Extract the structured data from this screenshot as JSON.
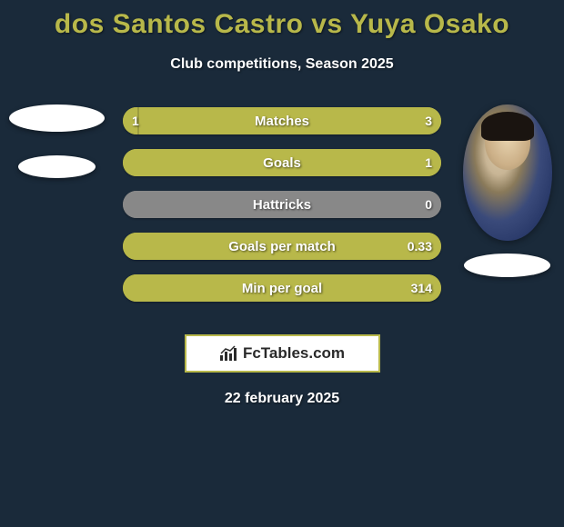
{
  "title": "dos Santos Castro vs Yuya Osako",
  "subtitle": "Club competitions, Season 2025",
  "date": "22 february 2025",
  "logo_text": "FcTables.com",
  "colors": {
    "background": "#1a2a3a",
    "accent": "#b8b84a",
    "bar_primary": "#b8b84a",
    "bar_neutral": "#888888",
    "text": "#ffffff"
  },
  "players": {
    "left": {
      "name": "dos Santos Castro",
      "avatar_style": "placeholder"
    },
    "right": {
      "name": "Yuya Osako",
      "avatar_style": "portrait"
    }
  },
  "bars": [
    {
      "label": "Matches",
      "left_val": "1",
      "right_val": "3",
      "left_pct": 5,
      "right_pct": 95,
      "left_color": "#b8b84a",
      "right_color": "#b8b84a"
    },
    {
      "label": "Goals",
      "left_val": "",
      "right_val": "1",
      "left_pct": 0,
      "right_pct": 100,
      "left_color": "#b8b84a",
      "right_color": "#b8b84a"
    },
    {
      "label": "Hattricks",
      "left_val": "",
      "right_val": "0",
      "left_pct": 0,
      "right_pct": 100,
      "left_color": "#888888",
      "right_color": "#888888"
    },
    {
      "label": "Goals per match",
      "left_val": "",
      "right_val": "0.33",
      "left_pct": 0,
      "right_pct": 100,
      "left_color": "#b8b84a",
      "right_color": "#b8b84a"
    },
    {
      "label": "Min per goal",
      "left_val": "",
      "right_val": "314",
      "left_pct": 0,
      "right_pct": 100,
      "left_color": "#b8b84a",
      "right_color": "#b8b84a"
    }
  ]
}
